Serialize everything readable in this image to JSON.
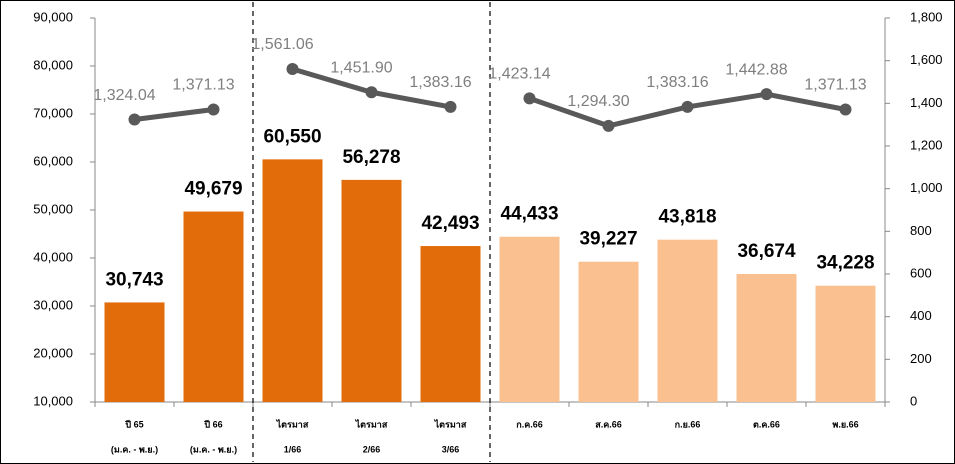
{
  "chart_data": {
    "type": "bar",
    "categories": [
      [
        "ปี 65",
        "(ม.ค. - พ.ย.)"
      ],
      [
        "ปี 66",
        "(ม.ค. - พ.ย.)"
      ],
      [
        "ไตรมาส",
        "1/66"
      ],
      [
        "ไตรมาส",
        "2/66"
      ],
      [
        "ไตรมาส",
        "3/66"
      ],
      [
        "ก.ค.66"
      ],
      [
        "ส.ค.66"
      ],
      [
        "ก.ย.66"
      ],
      [
        "ต.ค.66"
      ],
      [
        "พ.ย.66"
      ]
    ],
    "series": [
      {
        "type": "bar",
        "colors": [
          "#e36c0a",
          "#e36c0a",
          "#e36c0a",
          "#e36c0a",
          "#e36c0a",
          "#fac090",
          "#fac090",
          "#fac090",
          "#fac090",
          "#fac090"
        ],
        "values": [
          30743,
          49679,
          60550,
          56278,
          42493,
          44433,
          39227,
          43818,
          36674,
          34228
        ],
        "value_labels": [
          "30,743",
          "49,679",
          "60,550",
          "56,278",
          "42,493",
          "44,433",
          "39,227",
          "43,818",
          "36,674",
          "34,228"
        ]
      },
      {
        "type": "line",
        "axis": "y2",
        "color": "#595959",
        "values": [
          1324.04,
          1371.13,
          1561.06,
          1451.9,
          1383.16,
          1423.14,
          1294.3,
          1383.16,
          1442.88,
          1371.13
        ],
        "value_labels": [
          "1,324.04",
          "1,371.13",
          "1,561.06",
          "1,451.90",
          "1,383.16",
          "1,423.14",
          "1,294.30",
          "1,383.16",
          "1,442.88",
          "1,371.13"
        ]
      }
    ],
    "dividers_after": [
      1,
      4
    ],
    "ylim": [
      10000,
      90000
    ],
    "yticks": [
      {
        "value": 10000,
        "label": "10,000"
      },
      {
        "value": 20000,
        "label": "20,000"
      },
      {
        "value": 30000,
        "label": "30,000"
      },
      {
        "value": 40000,
        "label": "40,000"
      },
      {
        "value": 50000,
        "label": "50,000"
      },
      {
        "value": 60000,
        "label": "60,000"
      },
      {
        "value": 70000,
        "label": "70,000"
      },
      {
        "value": 80000,
        "label": "80,000"
      },
      {
        "value": 90000,
        "label": "90,000"
      }
    ],
    "y2lim": [
      0,
      1800
    ],
    "y2ticks": [
      0,
      200,
      400,
      600,
      800,
      {
        "value": 1000,
        "label": "1,000"
      },
      {
        "value": 1200,
        "label": "1,200"
      },
      {
        "value": 1400,
        "label": "1,400"
      },
      {
        "value": 1600,
        "label": "1,600"
      },
      {
        "value": 1800,
        "label": "1,800"
      }
    ]
  }
}
